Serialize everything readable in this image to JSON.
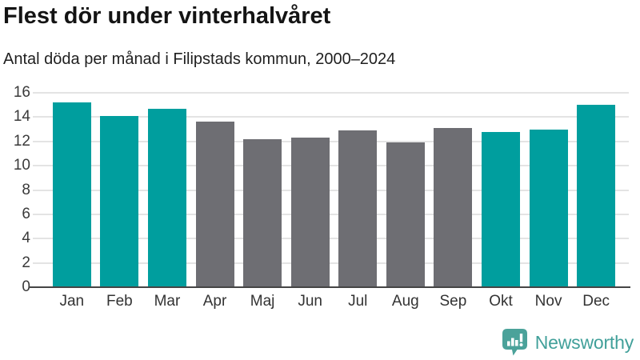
{
  "header": {
    "title": "Flest dör under vinterhalvåret",
    "subtitle": "Antal döda per månad i Filipstads kommun, 2000–2024"
  },
  "chart_data": {
    "type": "bar",
    "title": "Flest dör under vinterhalvåret",
    "subtitle": "Antal döda per månad i Filipstads kommun, 2000–2024",
    "categories": [
      "Jan",
      "Feb",
      "Mar",
      "Apr",
      "Maj",
      "Jun",
      "Jul",
      "Aug",
      "Sep",
      "Okt",
      "Nov",
      "Dec"
    ],
    "values": [
      15.2,
      14.1,
      14.7,
      13.6,
      12.2,
      12.3,
      12.9,
      11.9,
      13.1,
      12.8,
      13.0,
      15.0
    ],
    "bar_colors": [
      "#009e9e",
      "#009e9e",
      "#009e9e",
      "#6e6e73",
      "#6e6e73",
      "#6e6e73",
      "#6e6e73",
      "#6e6e73",
      "#6e6e73",
      "#009e9e",
      "#009e9e",
      "#009e9e"
    ],
    "highlight_color": "#009e9e",
    "muted_color": "#6e6e73",
    "highlighted_months": [
      "Jan",
      "Feb",
      "Mar",
      "Okt",
      "Nov",
      "Dec"
    ],
    "xlabel": "",
    "ylabel": "",
    "ylim": [
      0,
      16
    ],
    "yticks": [
      0,
      2,
      4,
      6,
      8,
      10,
      12,
      14,
      16
    ],
    "grid": true,
    "legend_position": "none",
    "gridline_color": "#e4e4e4",
    "axis_line_color": "#454545"
  },
  "footer": {
    "brand": "Newsworthy",
    "brand_color": "#41a09a",
    "logo_icon": "newsworthy-bar-chart-bubble-icon",
    "logo_icon_color": "#4ba29a"
  }
}
